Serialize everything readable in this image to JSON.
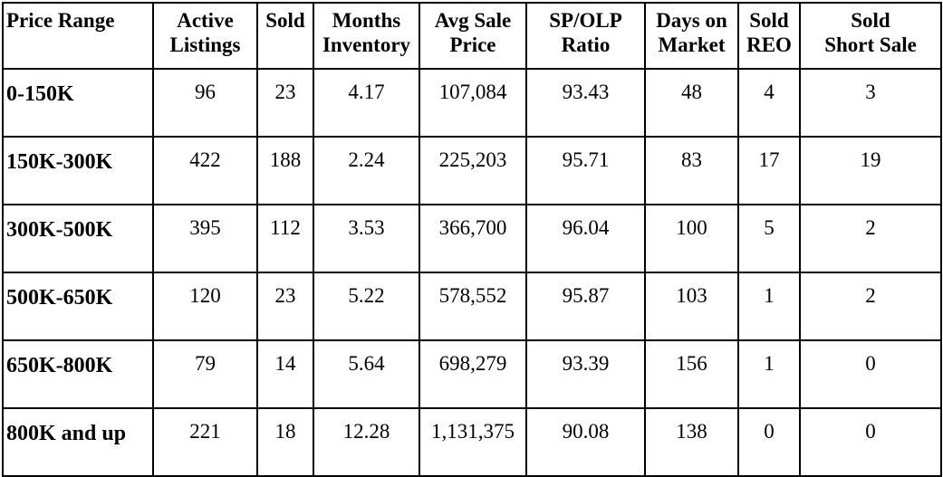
{
  "table": {
    "headers": [
      {
        "line1": "Price Range",
        "line2": ""
      },
      {
        "line1": "Active",
        "line2": "Listings"
      },
      {
        "line1": "Sold",
        "line2": ""
      },
      {
        "line1": "Months",
        "line2": "Inventory"
      },
      {
        "line1": "Avg Sale",
        "line2": "Price"
      },
      {
        "line1": "SP/OLP",
        "line2": "Ratio"
      },
      {
        "line1": "Days on",
        "line2": "Market"
      },
      {
        "line1": "Sold",
        "line2": "REO"
      },
      {
        "line1": "Sold",
        "line2": "Short Sale"
      }
    ],
    "rows": [
      [
        "0-150K",
        "96",
        "23",
        "4.17",
        "107,084",
        "93.43",
        "48",
        "4",
        "3"
      ],
      [
        "150K-300K",
        "422",
        "188",
        "2.24",
        "225,203",
        "95.71",
        "83",
        "17",
        "19"
      ],
      [
        "300K-500K",
        "395",
        "112",
        "3.53",
        "366,700",
        "96.04",
        "100",
        "5",
        "2"
      ],
      [
        "500K-650K",
        "120",
        "23",
        "5.22",
        "578,552",
        "95.87",
        "103",
        "1",
        "2"
      ],
      [
        "650K-800K",
        "79",
        "14",
        "5.64",
        "698,279",
        "93.39",
        "156",
        "1",
        "0"
      ],
      [
        "800K and up",
        "221",
        "18",
        "12.28",
        "1,131,375",
        "90.08",
        "138",
        "0",
        "0"
      ]
    ]
  }
}
